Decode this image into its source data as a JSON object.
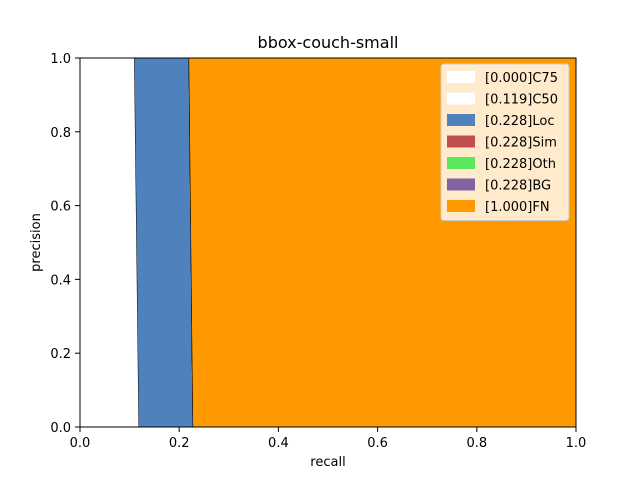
{
  "chart_data": {
    "type": "area",
    "title": "bbox-couch-small",
    "xlabel": "recall",
    "ylabel": "precision",
    "xlim": [
      0,
      1
    ],
    "ylim": [
      0,
      1
    ],
    "xticks": [
      "0.0",
      "0.2",
      "0.4",
      "0.6",
      "0.8",
      "1.0"
    ],
    "yticks": [
      "0.0",
      "0.2",
      "0.4",
      "0.6",
      "0.8",
      "1.0"
    ],
    "grid": false,
    "legend_position": "top-right",
    "series": [
      {
        "name": "[0.000]C75",
        "color": "#ffffff",
        "recall_at_precision_1": 0.0,
        "recall_at_precision_0": 0.0
      },
      {
        "name": "[0.119]C50",
        "color": "#ffffff",
        "recall_at_precision_1": 0.11,
        "recall_at_precision_0": 0.119
      },
      {
        "name": "[0.228]Loc",
        "color": "#4f81bd",
        "recall_at_precision_1": 0.22,
        "recall_at_precision_0": 0.228
      },
      {
        "name": "[0.228]Sim",
        "color": "#c0504d",
        "recall_at_precision_1": 0.22,
        "recall_at_precision_0": 0.228
      },
      {
        "name": "[0.228]Oth",
        "color": "#5ae85a",
        "recall_at_precision_1": 0.22,
        "recall_at_precision_0": 0.228
      },
      {
        "name": "[0.228]BG",
        "color": "#8064a2",
        "recall_at_precision_1": 0.22,
        "recall_at_precision_0": 0.228
      },
      {
        "name": "[1.000]FN",
        "color": "#ff9900",
        "recall_at_precision_1": 1.0,
        "recall_at_precision_0": 1.0
      }
    ]
  }
}
